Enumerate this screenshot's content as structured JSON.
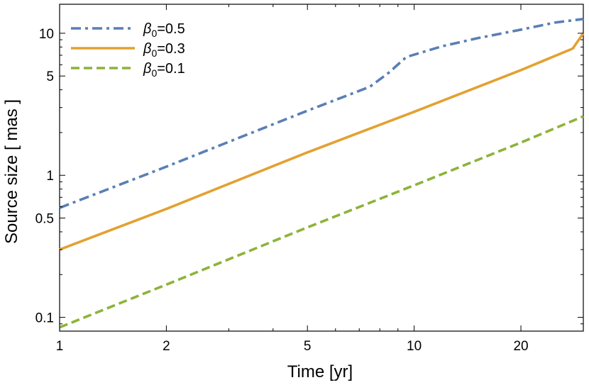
{
  "chart_data": {
    "type": "line",
    "title": "",
    "xlabel": "Time [yr]",
    "ylabel": "Source size [ mas ]",
    "xscale": "log",
    "yscale": "log",
    "xlim": [
      1,
      30
    ],
    "ylim": [
      0.08,
      16
    ],
    "xticks": [
      {
        "value": 1,
        "label": "1"
      },
      {
        "value": 2,
        "label": "2"
      },
      {
        "value": 5,
        "label": "5"
      },
      {
        "value": 10,
        "label": "10"
      },
      {
        "value": 20,
        "label": "20"
      }
    ],
    "yticks": [
      {
        "value": 0.1,
        "label": "0.1"
      },
      {
        "value": 0.5,
        "label": "0.5"
      },
      {
        "value": 1,
        "label": "1"
      },
      {
        "value": 5,
        "label": "5"
      },
      {
        "value": 10,
        "label": "10"
      }
    ],
    "grid": false,
    "legend_position": "top-left",
    "series": [
      {
        "name": "β0=0.5",
        "legend_base": "β",
        "legend_sub": "0",
        "legend_rest": "=0.5",
        "color": "#5a7fb5",
        "style": "dash-dot",
        "x": [
          1,
          2,
          3,
          5,
          7.5,
          8.5,
          9.5,
          12,
          15,
          20,
          25,
          30
        ],
        "y": [
          0.59,
          1.15,
          1.72,
          2.85,
          4.2,
          5.3,
          6.8,
          8.1,
          9.2,
          10.6,
          11.9,
          12.6
        ]
      },
      {
        "name": "β0=0.3",
        "legend_base": "β",
        "legend_sub": "0",
        "legend_rest": "=0.3",
        "color": "#e3a131",
        "style": "solid",
        "x": [
          1,
          2,
          5,
          10,
          20,
          28,
          30
        ],
        "y": [
          0.3,
          0.58,
          1.45,
          2.8,
          5.5,
          7.8,
          10
        ]
      },
      {
        "name": "β0=0.1",
        "legend_base": "β",
        "legend_sub": "0",
        "legend_rest": "=0.1",
        "color": "#8db33a",
        "style": "dashed",
        "x": [
          1,
          2,
          5,
          10,
          20,
          30
        ],
        "y": [
          0.085,
          0.17,
          0.43,
          0.85,
          1.7,
          2.6
        ]
      }
    ]
  }
}
